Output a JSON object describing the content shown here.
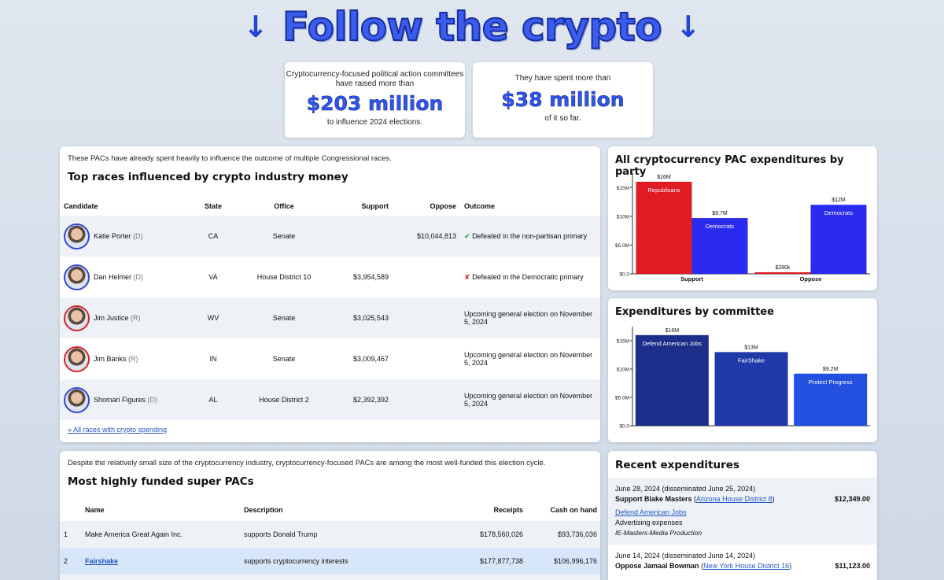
{
  "hero": {
    "title": "Follow the crypto",
    "arrow": "↓"
  },
  "stats": [
    {
      "pre1": "Cryptocurrency-focused political action committees",
      "pre2": "have raised more than",
      "big": "$203 million",
      "post": "to influence 2024 elections."
    },
    {
      "pre1": "They have spent more than",
      "pre2": "",
      "big": "$38 million",
      "post": "of it so far."
    }
  ],
  "races": {
    "intro": "These PACs have already spent heavily to influence the outcome of multiple Congressional races.",
    "heading": "Top races influenced by crypto industry money",
    "columns": [
      "Candidate",
      "State",
      "Office",
      "Support",
      "Oppose",
      "Outcome"
    ],
    "rows": [
      {
        "name": "Katie Porter",
        "party": "(D)",
        "state": "CA",
        "office": "Senate",
        "support": "",
        "oppose": "$10,044,813",
        "mark": "✔",
        "outcome": "Defeated in the non-partisan primary"
      },
      {
        "name": "Dan Helmer",
        "party": "(D)",
        "state": "VA",
        "office": "House District 10",
        "support": "$3,954,589",
        "oppose": "",
        "mark": "✘",
        "outcome": "Defeated in the Democratic primary"
      },
      {
        "name": "Jim Justice",
        "party": "(R)",
        "state": "WV",
        "office": "Senate",
        "support": "$3,025,543",
        "oppose": "",
        "mark": "",
        "outcome": "Upcoming general election on November 5, 2024"
      },
      {
        "name": "Jim Banks",
        "party": "(R)",
        "state": "IN",
        "office": "Senate",
        "support": "$3,009,467",
        "oppose": "",
        "mark": "",
        "outcome": "Upcoming general election on November 5, 2024"
      },
      {
        "name": "Shomari Figures",
        "party": "(D)",
        "state": "AL",
        "office": "House District 2",
        "support": "$2,392,392",
        "oppose": "",
        "mark": "",
        "outcome": "Upcoming general election on November 5, 2024"
      }
    ],
    "all_link": "» All races with crypto spending"
  },
  "pacs": {
    "intro": "Despite the relatively small size of the cryptocurrency industry, cryptocurrency-focused PACs are among the most well-funded this election cycle.",
    "heading": "Most highly funded super PACs",
    "columns": [
      "Name",
      "Description",
      "Receipts",
      "Cash on hand"
    ],
    "rows": [
      {
        "num": "1",
        "name": "Make America Great Again Inc.",
        "desc": "supports Donald Trump",
        "receipts": "$178,560,026",
        "cash": "$93,736,036"
      },
      {
        "num": "2",
        "name": "Fairshake",
        "desc": "supports cryptocurrency interests",
        "receipts": "$177,877,738",
        "cash": "$106,996,176"
      }
    ]
  },
  "recent": {
    "heading": "Recent expenditures",
    "items": [
      {
        "date": "June 28, 2024 (disseminated June 25, 2024)",
        "action": "Support Blake Masters",
        "race": "Arizona House District 8",
        "amount": "$12,349.00",
        "committee": "Defend American Jobs",
        "purpose": "Advertising expenses",
        "payee": "IE-Masters-Media Production"
      },
      {
        "date": "June 14, 2024 (disseminated June 14, 2024)",
        "action": "Oppose Jamaal Bowman",
        "race": "New York House District 16",
        "amount": "$11,123.00"
      }
    ]
  },
  "colors": {
    "republican": "#e01b24",
    "democrat": "#2b2bf0",
    "committee1": "#1b2f8a",
    "committee2": "#1f3aa8",
    "committee3": "#2450e0"
  },
  "chart_data": [
    {
      "type": "bar",
      "title": "All cryptocurrency PAC expenditures by party",
      "categories": [
        "Support",
        "Oppose"
      ],
      "series": [
        {
          "name": "Republicans",
          "values": [
            16,
            0.28
          ],
          "labels": [
            "$16M",
            "$280k"
          ]
        },
        {
          "name": "Democrats",
          "values": [
            9.7,
            12
          ],
          "labels": [
            "$9.7M",
            "$12M"
          ]
        }
      ],
      "yticks": [
        "$0.0",
        "$5.0M",
        "$10M",
        "$15M"
      ],
      "ylim": [
        0,
        17.5
      ],
      "grid": false,
      "legend": "inside-bars"
    },
    {
      "type": "bar",
      "title": "Expenditures by committee",
      "categories": [
        "Defend American Jobs",
        "FairShake",
        "Protect Progress"
      ],
      "values": [
        16,
        13,
        9.2
      ],
      "labels": [
        "$16M",
        "$13M",
        "$9.2M"
      ],
      "yticks": [
        "$0.0",
        "$5.0M",
        "$10M",
        "$15M"
      ],
      "ylim": [
        0,
        17.5
      ],
      "grid": false,
      "legend": "none"
    }
  ]
}
